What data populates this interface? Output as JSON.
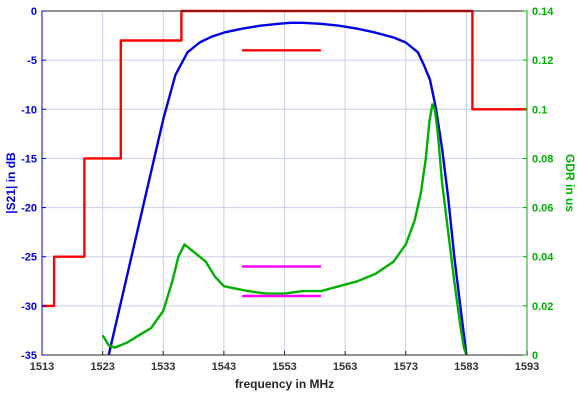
{
  "chart_data": {
    "type": "line",
    "title": "",
    "xlabel": "frequency in MHz",
    "ylabel_left": "|S21| in dB",
    "ylabel_right": "GDR in us",
    "xlim": [
      1513,
      1593
    ],
    "ylim_left": [
      -35,
      0
    ],
    "ylim_right": [
      0,
      0.14
    ],
    "xticks": [
      1513,
      1523,
      1533,
      1543,
      1553,
      1563,
      1573,
      1583,
      1593
    ],
    "yticks_left": [
      0,
      -5,
      -10,
      -15,
      -20,
      -25,
      -30,
      -35
    ],
    "yticks_right": [
      0,
      0.02,
      0.04,
      0.06,
      0.08,
      0.1,
      0.12,
      0.14
    ],
    "grid": true,
    "colors": {
      "mask": "#ff0000",
      "s21": "#0000e6",
      "gdr": "#00b000",
      "gdr_limits": "#ff00ff",
      "grid": "#c8cfe6",
      "left_axis": "#0000e6",
      "right_axis": "#00b000"
    },
    "series": [
      {
        "axis": "left",
        "color": "#ff0000",
        "points": [
          [
            1513,
            -30
          ],
          [
            1515,
            -30
          ],
          [
            1515,
            -25
          ],
          [
            1520,
            -25
          ],
          [
            1520,
            -15
          ],
          [
            1526,
            -15
          ],
          [
            1526,
            -3
          ],
          [
            1536,
            -3
          ],
          [
            1536,
            0
          ],
          [
            1584,
            0
          ],
          [
            1584,
            -10
          ],
          [
            1593,
            -10
          ]
        ]
      },
      {
        "axis": "left",
        "color": "#0000e6",
        "points": [
          [
            1524,
            -35
          ],
          [
            1527,
            -27
          ],
          [
            1530,
            -19
          ],
          [
            1533,
            -11
          ],
          [
            1535,
            -6.5
          ],
          [
            1537,
            -4.2
          ],
          [
            1539,
            -3.2
          ],
          [
            1541,
            -2.6
          ],
          [
            1543,
            -2.2
          ],
          [
            1546,
            -1.8
          ],
          [
            1549,
            -1.5
          ],
          [
            1552,
            -1.3
          ],
          [
            1554,
            -1.2
          ],
          [
            1556,
            -1.2
          ],
          [
            1559,
            -1.3
          ],
          [
            1562,
            -1.5
          ],
          [
            1565,
            -1.8
          ],
          [
            1568,
            -2.2
          ],
          [
            1571,
            -2.7
          ],
          [
            1573,
            -3.2
          ],
          [
            1575,
            -4.2
          ],
          [
            1576,
            -5.5
          ],
          [
            1577,
            -7
          ],
          [
            1578,
            -10
          ],
          [
            1579,
            -14
          ],
          [
            1580,
            -19
          ],
          [
            1581,
            -25
          ],
          [
            1582,
            -30
          ],
          [
            1583,
            -35
          ]
        ]
      },
      {
        "axis": "right",
        "color": "#00b000",
        "points": [
          [
            1523,
            0.008
          ],
          [
            1524,
            0.004
          ],
          [
            1525,
            0.003
          ],
          [
            1527,
            0.005
          ],
          [
            1529,
            0.008
          ],
          [
            1531,
            0.011
          ],
          [
            1533,
            0.018
          ],
          [
            1534.5,
            0.03
          ],
          [
            1535.5,
            0.04
          ],
          [
            1536.5,
            0.045
          ],
          [
            1538,
            0.042
          ],
          [
            1540,
            0.038
          ],
          [
            1541.5,
            0.032
          ],
          [
            1543,
            0.028
          ],
          [
            1545,
            0.027
          ],
          [
            1547,
            0.026
          ],
          [
            1550,
            0.025
          ],
          [
            1553,
            0.025
          ],
          [
            1556,
            0.026
          ],
          [
            1559,
            0.026
          ],
          [
            1562,
            0.028
          ],
          [
            1565,
            0.03
          ],
          [
            1568,
            0.033
          ],
          [
            1571,
            0.038
          ],
          [
            1573,
            0.045
          ],
          [
            1574.5,
            0.055
          ],
          [
            1575.5,
            0.066
          ],
          [
            1576.3,
            0.08
          ],
          [
            1576.9,
            0.095
          ],
          [
            1577.4,
            0.102
          ],
          [
            1577.8,
            0.1
          ],
          [
            1578.3,
            0.09
          ],
          [
            1579,
            0.07
          ],
          [
            1580,
            0.05
          ],
          [
            1581,
            0.03
          ],
          [
            1582,
            0.012
          ],
          [
            1582.6,
            0.003
          ],
          [
            1583,
            0
          ]
        ]
      },
      {
        "axis": "left",
        "color": "#ff0000",
        "points": [
          [
            1546,
            -4
          ],
          [
            1559,
            -4
          ]
        ]
      },
      {
        "axis": "left",
        "color": "#ff00ff",
        "points": [
          [
            1546,
            -26
          ],
          [
            1559,
            -26
          ]
        ]
      },
      {
        "axis": "left",
        "color": "#ff00ff",
        "points": [
          [
            1546,
            -29
          ],
          [
            1559,
            -29
          ]
        ]
      }
    ]
  }
}
